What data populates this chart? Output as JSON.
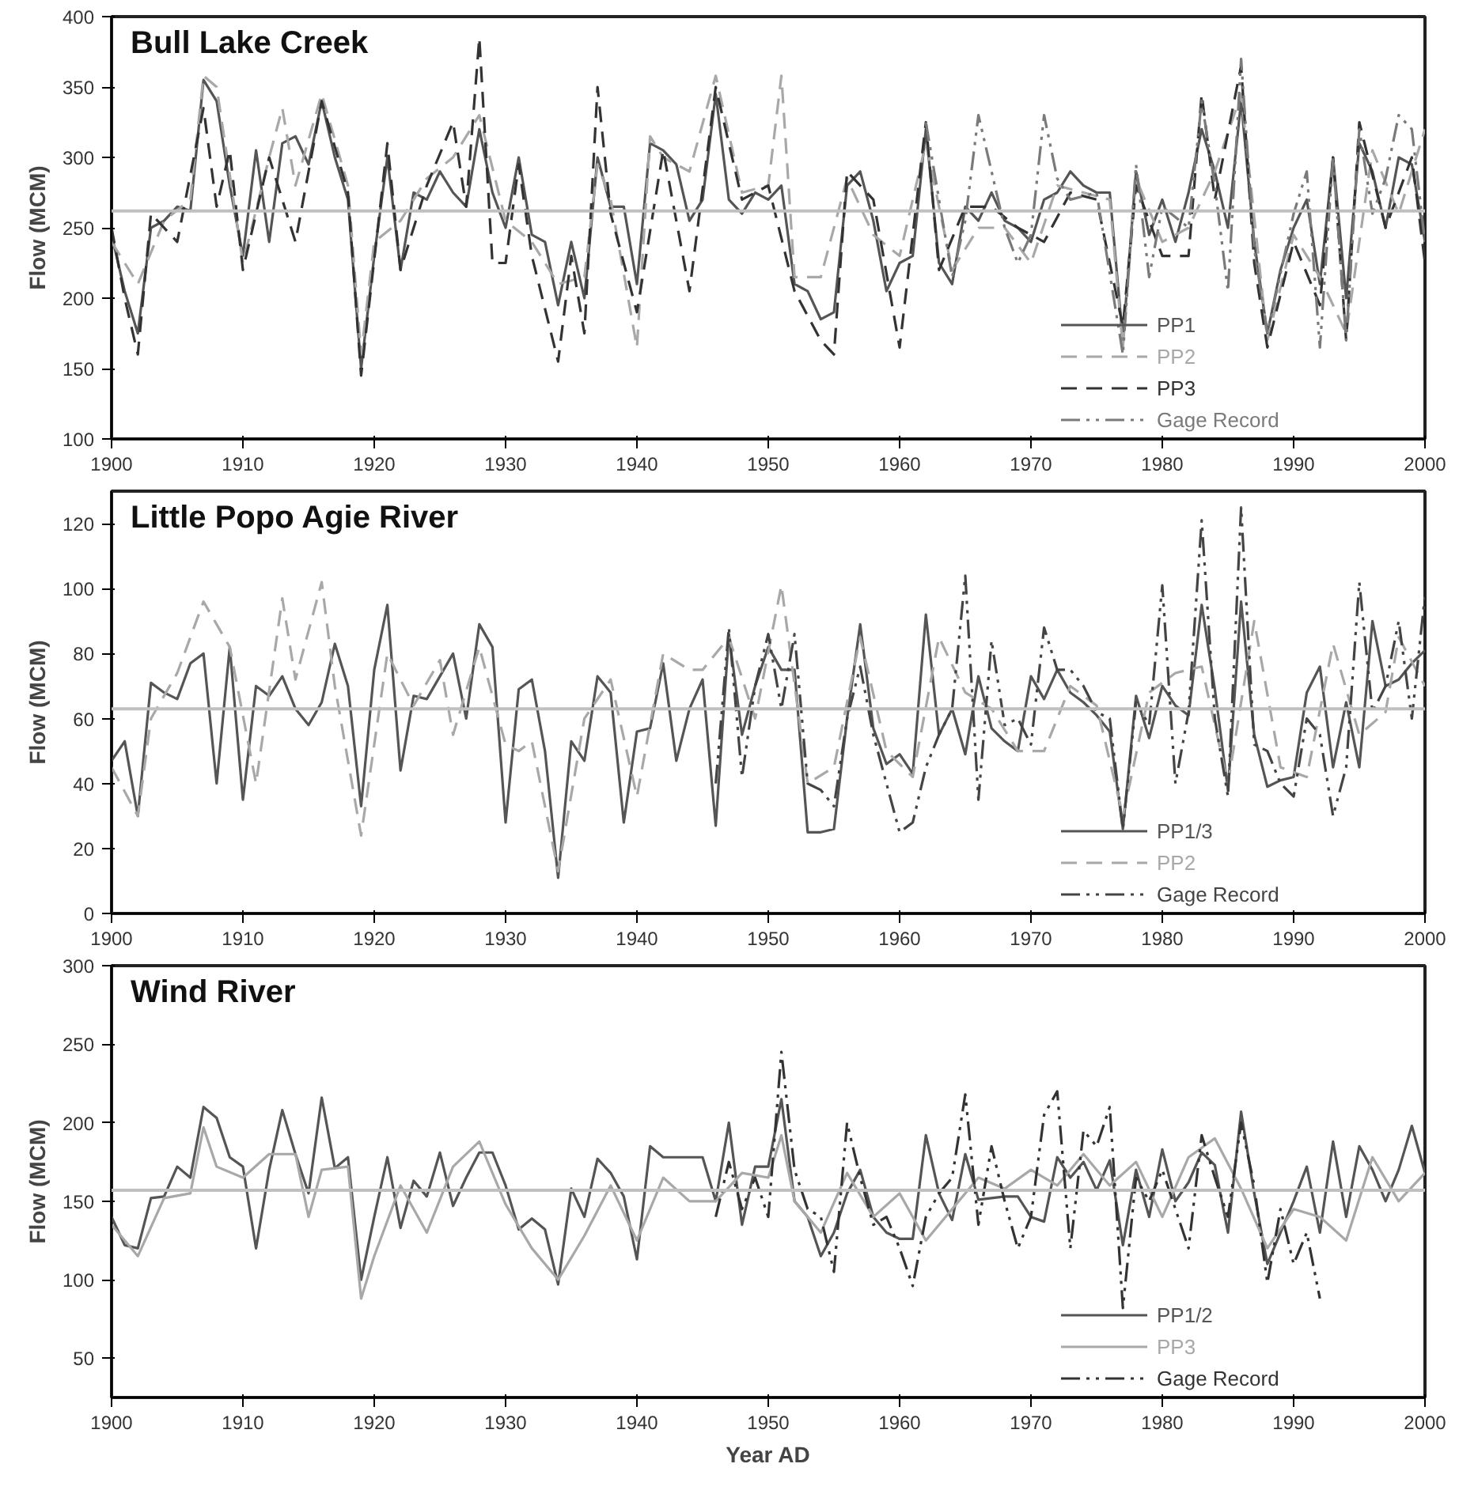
{
  "chart_data": [
    {
      "type": "line",
      "title": "Bull Lake Creek",
      "ylabel": "Flow (MCM)",
      "xlim": [
        1900,
        2000
      ],
      "xticks": [
        1900,
        1910,
        1920,
        1930,
        1940,
        1950,
        1960,
        1970,
        1980,
        1990,
        2000
      ],
      "ylim": [
        100,
        400
      ],
      "yticks": [
        100,
        150,
        200,
        250,
        300,
        350,
        400
      ],
      "grid": false,
      "legend": "bottom right",
      "ref_lines": [
        {
          "axis": "y",
          "value": 262,
          "color": "#c0c0c0"
        }
      ],
      "series": [
        {
          "name": "PP1",
          "color": "#555555",
          "line_style": "solid",
          "x": [
            1900,
            1901,
            1902,
            1903,
            1904,
            1905,
            1906,
            1907,
            1908,
            1909,
            1910,
            1911,
            1912,
            1913,
            1914,
            1915,
            1916,
            1917,
            1918,
            1919,
            1920,
            1921,
            1922,
            1923,
            1924,
            1925,
            1926,
            1927,
            1928,
            1929,
            1930,
            1931,
            1932,
            1933,
            1934,
            1935,
            1936,
            1937,
            1938,
            1939,
            1940,
            1941,
            1942,
            1943,
            1944,
            1945,
            1946,
            1947,
            1948,
            1949,
            1950,
            1951,
            1952,
            1953,
            1954,
            1955,
            1956,
            1957,
            1958,
            1959,
            1960,
            1961,
            1962,
            1963,
            1964,
            1965,
            1966,
            1967,
            1968,
            1969,
            1970,
            1971,
            1972,
            1973,
            1974,
            1975,
            1976,
            1977,
            1978,
            1979,
            1980,
            1981,
            1982,
            1983,
            1984,
            1985,
            1986,
            1987,
            1988,
            1989,
            1990,
            1991,
            1992,
            1993,
            1994,
            1995,
            1996,
            1997,
            1998,
            1999,
            2000
          ],
          "values": [
            245,
            205,
            175,
            250,
            255,
            265,
            262,
            355,
            340,
            280,
            230,
            305,
            240,
            310,
            315,
            295,
            340,
            300,
            270,
            150,
            230,
            300,
            220,
            275,
            270,
            290,
            275,
            265,
            320,
            275,
            250,
            300,
            245,
            240,
            195,
            240,
            200,
            300,
            265,
            265,
            210,
            310,
            305,
            295,
            255,
            270,
            345,
            270,
            260,
            275,
            270,
            280,
            210,
            205,
            185,
            190,
            280,
            290,
            255,
            205,
            225,
            230,
            320,
            225,
            210,
            265,
            255,
            275,
            255,
            250,
            240,
            270,
            275,
            290,
            280,
            275,
            275,
            170,
            290,
            245,
            270,
            240,
            275,
            320,
            290,
            250,
            340,
            240,
            175,
            220,
            250,
            270,
            210,
            300,
            200,
            310,
            290,
            250,
            300,
            295,
            240
          ]
        },
        {
          "name": "PP2",
          "color": "#a8a8a8",
          "line_style": "dashed",
          "x": [
            1900,
            1902,
            1904,
            1906,
            1907,
            1908,
            1910,
            1912,
            1913,
            1914,
            1916,
            1918,
            1919,
            1920,
            1922,
            1924,
            1926,
            1928,
            1930,
            1932,
            1934,
            1936,
            1937,
            1938,
            1940,
            1941,
            1942,
            1944,
            1946,
            1948,
            1950,
            1951,
            1952,
            1954,
            1956,
            1958,
            1960,
            1962,
            1964,
            1966,
            1968,
            1970,
            1972,
            1974,
            1976,
            1977,
            1978,
            1980,
            1982,
            1984,
            1986,
            1988,
            1990,
            1992,
            1994,
            1996,
            1998,
            2000
          ],
          "values": [
            240,
            210,
            255,
            270,
            358,
            350,
            225,
            300,
            335,
            280,
            345,
            280,
            160,
            240,
            255,
            285,
            300,
            330,
            255,
            240,
            210,
            215,
            295,
            270,
            165,
            315,
            300,
            290,
            358,
            275,
            280,
            358,
            215,
            215,
            285,
            245,
            230,
            310,
            220,
            250,
            250,
            225,
            280,
            275,
            270,
            165,
            285,
            240,
            250,
            290,
            345,
            170,
            245,
            215,
            175,
            305,
            260,
            320
          ]
        },
        {
          "name": "PP3",
          "color": "#333333",
          "line_style": "dashed",
          "x": [
            1900,
            1901,
            1902,
            1903,
            1905,
            1907,
            1908,
            1909,
            1910,
            1912,
            1914,
            1916,
            1918,
            1919,
            1921,
            1922,
            1924,
            1926,
            1927,
            1928,
            1929,
            1930,
            1931,
            1932,
            1934,
            1935,
            1936,
            1937,
            1938,
            1940,
            1942,
            1944,
            1946,
            1948,
            1950,
            1952,
            1954,
            1955,
            1956,
            1958,
            1960,
            1962,
            1963,
            1965,
            1967,
            1969,
            1971,
            1973,
            1975,
            1977,
            1978,
            1980,
            1982,
            1983,
            1984,
            1986,
            1987,
            1988,
            1990,
            1992,
            1993,
            1994,
            1995,
            1997,
            1999,
            2000
          ],
          "values": [
            250,
            200,
            160,
            260,
            240,
            335,
            265,
            305,
            220,
            300,
            240,
            340,
            275,
            145,
            310,
            220,
            280,
            325,
            265,
            385,
            225,
            225,
            295,
            230,
            155,
            230,
            175,
            350,
            260,
            190,
            305,
            205,
            350,
            270,
            280,
            205,
            170,
            160,
            290,
            270,
            165,
            325,
            220,
            265,
            265,
            250,
            240,
            275,
            270,
            180,
            280,
            230,
            230,
            345,
            270,
            365,
            225,
            165,
            240,
            195,
            300,
            170,
            325,
            250,
            300,
            225
          ]
        },
        {
          "name": "Gage Record",
          "color": "#7a7a7a",
          "line_style": "dashdot",
          "x": [
            1962,
            1964,
            1965,
            1966,
            1968,
            1969,
            1970,
            1971,
            1972,
            1973,
            1975,
            1977,
            1978,
            1979,
            1980,
            1982,
            1983,
            1984,
            1985,
            1986,
            1987,
            1988,
            1990,
            1991,
            1992,
            1993,
            1994,
            1995,
            1996,
            1997,
            1998,
            1999,
            2000
          ],
          "values": [
            325,
            215,
            255,
            330,
            250,
            225,
            245,
            330,
            285,
            270,
            275,
            160,
            295,
            215,
            265,
            250,
            340,
            280,
            205,
            370,
            235,
            175,
            260,
            290,
            165,
            300,
            170,
            320,
            260,
            285,
            330,
            320,
            240
          ]
        }
      ]
    },
    {
      "type": "line",
      "title": "Little Popo Agie River",
      "ylabel": "Flow (MCM)",
      "xlim": [
        1900,
        2000
      ],
      "xticks": [
        1900,
        1910,
        1920,
        1930,
        1940,
        1950,
        1960,
        1970,
        1980,
        1990,
        2000
      ],
      "ylim": [
        0,
        130
      ],
      "yticks": [
        0,
        20,
        40,
        60,
        80,
        100,
        120
      ],
      "grid": false,
      "legend": "bottom right",
      "ref_lines": [
        {
          "axis": "y",
          "value": 63,
          "color": "#c0c0c0"
        }
      ],
      "series": [
        {
          "name": "PP1/3",
          "color": "#555555",
          "line_style": "solid",
          "x": [
            1900,
            1901,
            1902,
            1903,
            1904,
            1905,
            1906,
            1907,
            1908,
            1909,
            1910,
            1911,
            1912,
            1913,
            1914,
            1915,
            1916,
            1917,
            1918,
            1919,
            1920,
            1921,
            1922,
            1923,
            1924,
            1925,
            1926,
            1927,
            1928,
            1929,
            1930,
            1931,
            1932,
            1933,
            1934,
            1935,
            1936,
            1937,
            1938,
            1939,
            1940,
            1941,
            1942,
            1943,
            1944,
            1945,
            1946,
            1947,
            1948,
            1949,
            1950,
            1951,
            1952,
            1953,
            1954,
            1955,
            1956,
            1957,
            1958,
            1959,
            1960,
            1961,
            1962,
            1963,
            1964,
            1965,
            1966,
            1967,
            1968,
            1969,
            1970,
            1971,
            1972,
            1973,
            1974,
            1975,
            1976,
            1977,
            1978,
            1979,
            1980,
            1981,
            1982,
            1983,
            1984,
            1985,
            1986,
            1987,
            1988,
            1989,
            1990,
            1991,
            1992,
            1993,
            1994,
            1995,
            1996,
            1997,
            1998,
            1999,
            2000
          ],
          "values": [
            47,
            53,
            30,
            71,
            68,
            66,
            77,
            80,
            40,
            82,
            35,
            70,
            67,
            73,
            63,
            58,
            65,
            83,
            70,
            33,
            75,
            95,
            44,
            67,
            66,
            73,
            80,
            60,
            89,
            82,
            28,
            69,
            72,
            50,
            11,
            53,
            47,
            73,
            68,
            28,
            56,
            57,
            77,
            47,
            63,
            72,
            27,
            86,
            55,
            70,
            82,
            75,
            75,
            25,
            25,
            26,
            60,
            89,
            57,
            46,
            49,
            43,
            92,
            55,
            63,
            49,
            73,
            57,
            53,
            50,
            73,
            66,
            75,
            68,
            65,
            61,
            56,
            26,
            67,
            54,
            70,
            64,
            61,
            95,
            69,
            38,
            96,
            55,
            39,
            41,
            42,
            68,
            76,
            45,
            65,
            45,
            90,
            70,
            72,
            77,
            81
          ]
        },
        {
          "name": "PP2",
          "color": "#a8a8a8",
          "line_style": "dashed",
          "x": [
            1900,
            1902,
            1903,
            1905,
            1907,
            1909,
            1911,
            1913,
            1914,
            1916,
            1917,
            1919,
            1921,
            1923,
            1925,
            1926,
            1928,
            1930,
            1931,
            1932,
            1934,
            1936,
            1938,
            1940,
            1942,
            1944,
            1945,
            1947,
            1949,
            1951,
            1953,
            1955,
            1957,
            1959,
            1961,
            1963,
            1965,
            1967,
            1969,
            1971,
            1973,
            1975,
            1977,
            1979,
            1981,
            1983,
            1985,
            1987,
            1989,
            1991,
            1993,
            1995,
            1997,
            1998,
            2000
          ],
          "values": [
            45,
            30,
            60,
            74,
            96,
            82,
            40,
            97,
            72,
            102,
            70,
            24,
            80,
            64,
            78,
            55,
            82,
            52,
            50,
            53,
            13,
            60,
            72,
            36,
            80,
            75,
            75,
            85,
            60,
            101,
            40,
            45,
            85,
            50,
            42,
            85,
            68,
            63,
            50,
            50,
            70,
            64,
            30,
            68,
            74,
            76,
            40,
            90,
            45,
            42,
            83,
            55,
            62,
            85,
            70
          ]
        },
        {
          "name": "Gage Record",
          "color": "#444444",
          "line_style": "dashdot",
          "x": [
            1946,
            1947,
            1948,
            1949,
            1950,
            1951,
            1952,
            1953,
            1954,
            1955,
            1956,
            1957,
            1958,
            1959,
            1960,
            1961,
            1962,
            1963,
            1964,
            1965,
            1966,
            1967,
            1968,
            1969,
            1970,
            1971,
            1972,
            1973,
            1974,
            1975,
            1976,
            1977,
            1978,
            1979,
            1980,
            1981,
            1982,
            1983,
            1984,
            1985,
            1986,
            1987,
            1988,
            1989,
            1990,
            1991,
            1992,
            1993,
            1994,
            1995,
            1996,
            1997,
            1998,
            1999,
            2000
          ],
          "values": [
            40,
            88,
            42,
            70,
            86,
            63,
            86,
            40,
            38,
            33,
            60,
            76,
            55,
            40,
            25,
            28,
            45,
            55,
            63,
            104,
            35,
            84,
            58,
            60,
            52,
            88,
            75,
            75,
            70,
            62,
            60,
            26,
            65,
            58,
            101,
            40,
            62,
            121,
            60,
            36,
            125,
            52,
            50,
            40,
            36,
            60,
            55,
            30,
            45,
            102,
            62,
            70,
            90,
            60,
            98
          ]
        }
      ]
    },
    {
      "type": "line",
      "title": "Wind River",
      "xlabel": "Year AD",
      "ylabel": "Flow (MCM)",
      "xlim": [
        1900,
        2000
      ],
      "xticks": [
        1900,
        1910,
        1920,
        1930,
        1940,
        1950,
        1960,
        1970,
        1980,
        1990,
        2000
      ],
      "ylim": [
        25,
        300
      ],
      "yticks": [
        50,
        100,
        150,
        200,
        250,
        300
      ],
      "grid": false,
      "legend": "bottom right",
      "ref_lines": [
        {
          "axis": "y",
          "value": 157,
          "color": "#c0c0c0"
        }
      ],
      "series": [
        {
          "name": "PP1/2",
          "color": "#555555",
          "line_style": "solid",
          "x": [
            1900,
            1901,
            1902,
            1903,
            1904,
            1905,
            1906,
            1907,
            1908,
            1909,
            1910,
            1911,
            1912,
            1913,
            1914,
            1915,
            1916,
            1917,
            1918,
            1919,
            1920,
            1921,
            1922,
            1923,
            1924,
            1925,
            1926,
            1927,
            1928,
            1929,
            1930,
            1931,
            1932,
            1933,
            1934,
            1935,
            1936,
            1937,
            1938,
            1939,
            1940,
            1941,
            1942,
            1943,
            1944,
            1945,
            1946,
            1947,
            1948,
            1949,
            1950,
            1951,
            1952,
            1953,
            1954,
            1955,
            1956,
            1957,
            1958,
            1959,
            1960,
            1961,
            1962,
            1963,
            1964,
            1965,
            1966,
            1967,
            1968,
            1969,
            1970,
            1971,
            1972,
            1973,
            1974,
            1975,
            1976,
            1977,
            1978,
            1979,
            1980,
            1981,
            1982,
            1983,
            1984,
            1985,
            1986,
            1987,
            1988,
            1989,
            1990,
            1991,
            1992,
            1993,
            1994,
            1995,
            1996,
            1997,
            1998,
            1999,
            2000
          ],
          "values": [
            140,
            122,
            120,
            152,
            153,
            172,
            165,
            210,
            203,
            178,
            172,
            120,
            170,
            208,
            180,
            155,
            216,
            171,
            178,
            100,
            140,
            178,
            133,
            163,
            153,
            181,
            147,
            165,
            181,
            181,
            160,
            132,
            139,
            132,
            97,
            158,
            140,
            177,
            168,
            153,
            113,
            185,
            178,
            178,
            178,
            178,
            150,
            200,
            135,
            172,
            172,
            215,
            150,
            140,
            115,
            130,
            155,
            170,
            140,
            130,
            126,
            126,
            192,
            155,
            138,
            180,
            151,
            152,
            153,
            153,
            140,
            137,
            178,
            165,
            175,
            157,
            176,
            122,
            170,
            140,
            183,
            150,
            162,
            181,
            173,
            130,
            207,
            155,
            110,
            130,
            150,
            172,
            130,
            188,
            140,
            185,
            170,
            150,
            170,
            198,
            168
          ]
        },
        {
          "name": "PP3",
          "color": "#a8a8a8",
          "line_style": "solid",
          "x": [
            1900,
            1902,
            1904,
            1906,
            1907,
            1908,
            1910,
            1912,
            1914,
            1915,
            1916,
            1918,
            1919,
            1920,
            1922,
            1924,
            1926,
            1928,
            1930,
            1932,
            1934,
            1936,
            1938,
            1940,
            1942,
            1944,
            1946,
            1948,
            1950,
            1951,
            1952,
            1954,
            1956,
            1958,
            1960,
            1962,
            1964,
            1966,
            1968,
            1970,
            1972,
            1974,
            1976,
            1978,
            1980,
            1982,
            1984,
            1986,
            1988,
            1990,
            1992,
            1994,
            1996,
            1998,
            2000
          ],
          "values": [
            135,
            115,
            152,
            155,
            197,
            172,
            165,
            180,
            180,
            140,
            170,
            172,
            88,
            115,
            160,
            130,
            172,
            188,
            148,
            120,
            100,
            128,
            160,
            125,
            165,
            150,
            150,
            168,
            165,
            192,
            150,
            130,
            168,
            140,
            155,
            125,
            145,
            165,
            158,
            170,
            160,
            180,
            160,
            175,
            140,
            178,
            190,
            158,
            120,
            145,
            140,
            125,
            178,
            150,
            168
          ]
        },
        {
          "name": "Gage Record",
          "color": "#333333",
          "line_style": "dashdot",
          "x": [
            1946,
            1947,
            1948,
            1949,
            1950,
            1951,
            1952,
            1953,
            1954,
            1955,
            1956,
            1957,
            1958,
            1959,
            1960,
            1961,
            1962,
            1963,
            1964,
            1965,
            1966,
            1967,
            1968,
            1969,
            1970,
            1971,
            1972,
            1973,
            1974,
            1975,
            1976,
            1977,
            1978,
            1979,
            1980,
            1981,
            1982,
            1983,
            1984,
            1985,
            1986,
            1987,
            1988,
            1989,
            1990,
            1991,
            1992
          ],
          "values": [
            140,
            175,
            145,
            165,
            140,
            245,
            170,
            145,
            140,
            105,
            200,
            165,
            135,
            140,
            120,
            96,
            140,
            155,
            165,
            218,
            135,
            185,
            150,
            120,
            140,
            205,
            220,
            120,
            195,
            185,
            210,
            82,
            165,
            150,
            170,
            145,
            120,
            192,
            165,
            140,
            200,
            160,
            98,
            145,
            110,
            130,
            88
          ]
        }
      ]
    }
  ]
}
